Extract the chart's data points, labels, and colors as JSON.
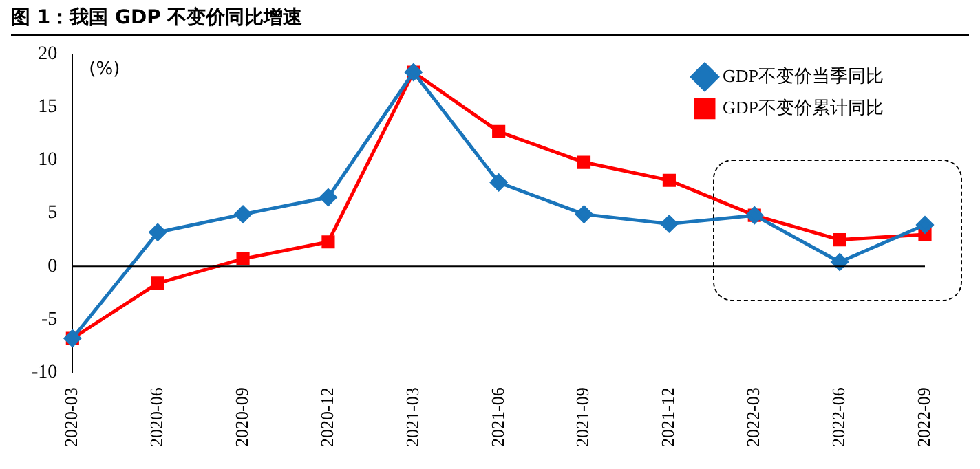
{
  "chart_data": {
    "type": "line",
    "title": "图 1：我国 GDP 不变价同比增速",
    "ylabel": "(%)",
    "categories": [
      "2020-03",
      "2020-06",
      "2020-09",
      "2020-12",
      "2021-03",
      "2021-06",
      "2021-09",
      "2021-12",
      "2022-03",
      "2022-06",
      "2022-09"
    ],
    "series": [
      {
        "name": "GDP不变价当季同比",
        "color": "#1a75bb",
        "marker": "diamond",
        "values": [
          -6.8,
          3.2,
          4.9,
          6.5,
          18.3,
          7.9,
          4.9,
          4.0,
          4.8,
          0.4,
          3.9
        ]
      },
      {
        "name": "GDP不变价累计同比",
        "color": "#ff0000",
        "marker": "square",
        "values": [
          -6.8,
          -1.6,
          0.7,
          2.3,
          18.3,
          12.7,
          9.8,
          8.1,
          4.8,
          2.5,
          3.0
        ]
      }
    ],
    "ylim": [
      -10,
      20
    ],
    "yticks": [
      -10,
      -5,
      0,
      5,
      10,
      15,
      20
    ],
    "grid": false,
    "ref_lines": [
      {
        "axis": "y",
        "value": 0,
        "color": "#000000",
        "line_style": "solid"
      }
    ],
    "legend": "top right",
    "line_style": "solid"
  }
}
